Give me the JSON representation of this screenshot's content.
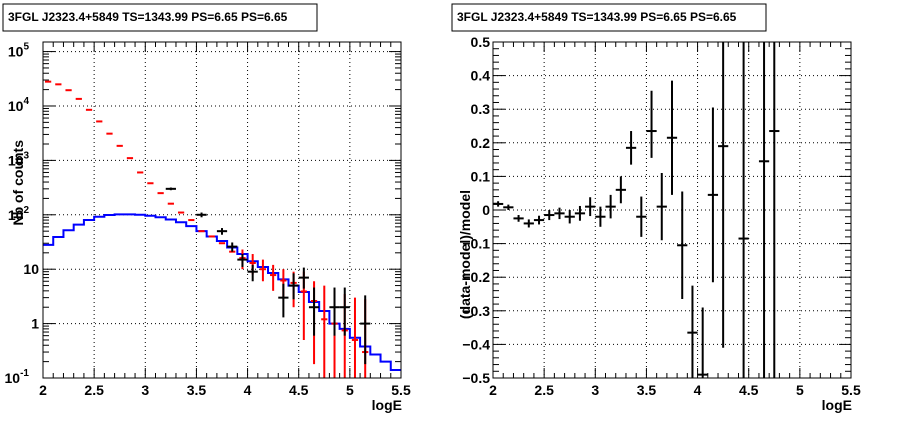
{
  "chart_data": [
    {
      "type": "line",
      "title": "3FGL J2323.4+5849 TS=1343.99 PS=6.65 PS=6.65",
      "xlabel": "logE",
      "ylabel": "Nb of counts",
      "xlim": [
        2,
        5.5
      ],
      "ylim": [
        0.1,
        150000
      ],
      "yscale": "log",
      "grid": true,
      "xticks": [
        "2",
        "2.5",
        "3",
        "3.5",
        "4",
        "4.5",
        "5",
        "5.5"
      ],
      "yticks": [
        "10^{-1}",
        "1",
        "10",
        "10^{2}",
        "10^{3}",
        "10^{4}",
        "10^{5}"
      ],
      "bin_edges": [
        2.0,
        2.1,
        2.2,
        2.3,
        2.4,
        2.5,
        2.6,
        2.7,
        2.8,
        2.9,
        3.0,
        3.1,
        3.2,
        3.3,
        3.4,
        3.5,
        3.6,
        3.7,
        3.8,
        3.9,
        4.0,
        4.1,
        4.2,
        4.3,
        4.4,
        4.5,
        4.6,
        4.7,
        4.8,
        4.9,
        5.0,
        5.1,
        5.2,
        5.3,
        5.4,
        5.5
      ],
      "series": [
        {
          "color": "#ff0000",
          "style": "model-with-errors",
          "x": [
            2.05,
            2.15,
            2.25,
            2.35,
            2.45,
            2.55,
            2.65,
            2.75,
            2.85,
            2.95,
            3.05,
            3.15,
            3.25,
            3.35,
            3.45,
            3.55,
            3.65,
            3.75,
            3.85,
            3.95,
            4.05,
            4.15,
            4.25,
            4.35,
            4.45,
            4.55,
            4.65,
            4.75,
            4.85,
            4.95,
            5.05,
            5.15
          ],
          "values": [
            28000,
            25000,
            19500,
            13500,
            8500,
            5200,
            3100,
            1850,
            1100,
            600,
            380,
            250,
            160,
            110,
            80,
            50,
            40,
            30,
            21,
            16,
            13,
            10,
            7.8,
            6.2,
            5.6,
            3.9,
            2.6,
            1.2,
            1.0,
            0.75,
            0.5,
            0.3
          ],
          "err_low": [
            null,
            null,
            null,
            null,
            null,
            null,
            null,
            null,
            null,
            null,
            null,
            null,
            null,
            null,
            null,
            null,
            null,
            null,
            null,
            10,
            8,
            6,
            4,
            2.8,
            2,
            0.5,
            0.18,
            0.1,
            0.1,
            0.1,
            0.1,
            0.1
          ],
          "err_high": [
            null,
            null,
            null,
            null,
            null,
            null,
            null,
            null,
            null,
            null,
            null,
            null,
            null,
            null,
            null,
            null,
            null,
            null,
            null,
            23,
            19,
            15,
            12,
            10,
            9,
            9,
            6,
            5,
            4,
            3.5,
            3,
            2.8
          ]
        },
        {
          "color": "#0000ff",
          "style": "step",
          "values": [
            28,
            39,
            52,
            66,
            80,
            92,
            99,
            102,
            102,
            100,
            96,
            90,
            82,
            73,
            62,
            50,
            40,
            33,
            25,
            19,
            14,
            11,
            8.5,
            6.5,
            5,
            3.8,
            2.5,
            1.7,
            1.0,
            0.8,
            0.55,
            0.38,
            0.27,
            0.2,
            0.14
          ]
        },
        {
          "color": "#000000",
          "style": "data-points",
          "x": [
            3.25,
            3.55,
            3.75,
            3.85,
            3.95,
            4.05,
            4.35,
            4.45,
            4.55,
            4.65,
            4.85,
            4.95,
            5.15
          ],
          "values": [
            300,
            100,
            50,
            26,
            15,
            9,
            3,
            5,
            7,
            2,
            2,
            2,
            1
          ],
          "err_low": [
            283,
            90,
            43,
            21,
            11,
            6,
            1.3,
            2.8,
            4.4,
            0.6,
            0.6,
            0.6,
            0.18
          ],
          "err_high": [
            317,
            110,
            57,
            31,
            19,
            12,
            5.4,
            8.4,
            10.7,
            4.6,
            4.6,
            4.6,
            3.3
          ]
        }
      ]
    },
    {
      "type": "scatter",
      "title": "3FGL J2323.4+5849 TS=1343.99 PS=6.65 PS=6.65",
      "xlabel": "logE",
      "ylabel": "(data-model)/model",
      "xlim": [
        2,
        5.5
      ],
      "ylim": [
        -0.5,
        0.5
      ],
      "grid": true,
      "xticks": [
        "2",
        "2.5",
        "3",
        "3.5",
        "4",
        "4.5",
        "5",
        "5.5"
      ],
      "yticks": [
        "-0.5",
        "-0.4",
        "-0.3",
        "-0.2",
        "-0.1",
        "0",
        "0.1",
        "0.2",
        "0.3",
        "0.4",
        "0.5"
      ],
      "series": [
        {
          "color": "#000000",
          "x": [
            2.05,
            2.15,
            2.25,
            2.35,
            2.45,
            2.55,
            2.65,
            2.75,
            2.85,
            2.95,
            3.05,
            3.15,
            3.25,
            3.35,
            3.45,
            3.55,
            3.65,
            3.75,
            3.85,
            3.95,
            4.05,
            4.15,
            4.25,
            4.45,
            4.65,
            4.75
          ],
          "values": [
            0.018,
            0.008,
            -0.025,
            -0.04,
            -0.03,
            -0.015,
            -0.01,
            -0.02,
            -0.01,
            0.01,
            -0.02,
            0.01,
            0.06,
            0.185,
            -0.02,
            0.235,
            0.01,
            0.215,
            -0.105,
            -0.365,
            -0.49,
            0.045,
            0.19,
            -0.085,
            0.145,
            0.235
          ],
          "err_low": [
            0.008,
            0.008,
            0.01,
            0.012,
            0.013,
            0.015,
            0.017,
            0.02,
            0.022,
            0.028,
            0.03,
            0.035,
            0.04,
            0.05,
            0.06,
            0.08,
            0.1,
            0.17,
            0.16,
            0.14,
            0.4,
            0.26,
            0.6,
            0.6,
            0.8,
            1.0
          ],
          "err_high": [
            0.008,
            0.008,
            0.01,
            0.012,
            0.013,
            0.015,
            0.017,
            0.02,
            0.022,
            0.028,
            0.03,
            0.035,
            0.04,
            0.05,
            0.06,
            0.12,
            0.1,
            0.17,
            0.16,
            0.14,
            0.2,
            0.26,
            0.6,
            0.6,
            0.8,
            1.0
          ]
        }
      ]
    }
  ]
}
